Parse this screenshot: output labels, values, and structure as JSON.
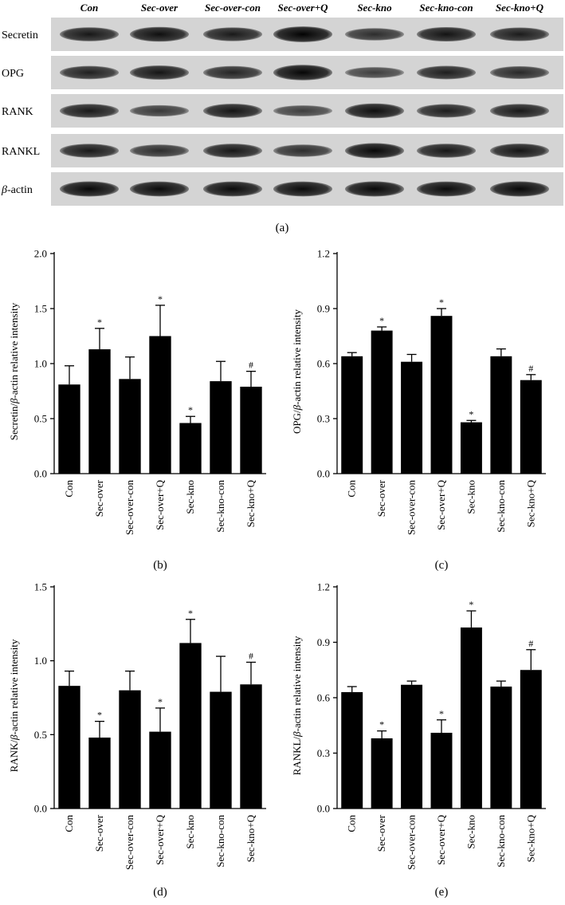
{
  "blot": {
    "lanes": [
      "Con",
      "Sec-over",
      "Sec-over-con",
      "Sec-over+Q",
      "Sec-kno",
      "Sec-kno-con",
      "Sec-kno+Q"
    ],
    "rows": [
      {
        "label": "Secretin",
        "label_italic_prefix": "",
        "intensity": [
          0.8,
          0.88,
          0.78,
          0.98,
          0.62,
          0.84,
          0.76
        ]
      },
      {
        "label": "OPG",
        "label_italic_prefix": "",
        "intensity": [
          0.72,
          0.82,
          0.7,
          0.95,
          0.48,
          0.74,
          0.66
        ]
      },
      {
        "label": "RANK",
        "label_italic_prefix": "",
        "intensity": [
          0.78,
          0.52,
          0.82,
          0.48,
          0.88,
          0.74,
          0.78
        ]
      },
      {
        "label": "RANKL",
        "label_italic_prefix": "",
        "intensity": [
          0.78,
          0.62,
          0.8,
          0.62,
          0.92,
          0.8,
          0.82
        ]
      },
      {
        "label": "-actin",
        "label_italic_prefix": "β",
        "intensity": [
          0.92,
          0.9,
          0.9,
          0.9,
          0.92,
          0.9,
          0.92
        ]
      }
    ],
    "panel_label": "(a)"
  },
  "chart_data": [
    {
      "type": "bar",
      "panel_label": "(b)",
      "ylabel_pre": "Secretin/",
      "ylabel_beta": "β",
      "ylabel_post": "-actin relative intensity",
      "categories": [
        "Con",
        "Sec-over",
        "Sec-over-con",
        "Sec-over+Q",
        "Sec-kno",
        "Sec-kno-con",
        "Sec-kno+Q"
      ],
      "values": [
        0.81,
        1.13,
        0.86,
        1.25,
        0.46,
        0.84,
        0.79
      ],
      "errors": [
        0.17,
        0.19,
        0.2,
        0.28,
        0.06,
        0.18,
        0.14
      ],
      "markers": [
        "",
        "*",
        "",
        "*",
        "*",
        "",
        "#"
      ],
      "ylim": [
        0,
        2.0
      ],
      "yticks": [
        "0.0",
        "0.5",
        "1.0",
        "1.5",
        "2.0"
      ],
      "ytick_values": [
        0,
        0.5,
        1.0,
        1.5,
        2.0
      ],
      "bar_color": "#000000"
    },
    {
      "type": "bar",
      "panel_label": "(c)",
      "ylabel_pre": "OPG/",
      "ylabel_beta": "β",
      "ylabel_post": "-actin relative intensity",
      "categories": [
        "Con",
        "Sec-over",
        "Sec-over-con",
        "Sec-over+Q",
        "Sec-kno",
        "Sec-kno-con",
        "Sec-kno+Q"
      ],
      "values": [
        0.64,
        0.78,
        0.61,
        0.86,
        0.28,
        0.64,
        0.51
      ],
      "errors": [
        0.02,
        0.02,
        0.04,
        0.04,
        0.01,
        0.04,
        0.03
      ],
      "markers": [
        "",
        "*",
        "",
        "*",
        "*",
        "",
        "#"
      ],
      "ylim": [
        0,
        1.2
      ],
      "yticks": [
        "0.0",
        "0.3",
        "0.6",
        "0.9",
        "1.2"
      ],
      "ytick_values": [
        0,
        0.3,
        0.6,
        0.9,
        1.2
      ],
      "bar_color": "#000000"
    },
    {
      "type": "bar",
      "panel_label": "(d)",
      "ylabel_pre": "RANK/",
      "ylabel_beta": "β",
      "ylabel_post": "-actin relative intensity",
      "categories": [
        "Con",
        "Sec-over",
        "Sec-over-con",
        "Sec-over+Q",
        "Sec-kno",
        "Sec-kno-con",
        "Sec-kno+Q"
      ],
      "values": [
        0.83,
        0.48,
        0.8,
        0.52,
        1.12,
        0.79,
        0.84
      ],
      "errors": [
        0.1,
        0.11,
        0.13,
        0.16,
        0.16,
        0.24,
        0.15
      ],
      "markers": [
        "",
        "*",
        "",
        "*",
        "*",
        "",
        "#"
      ],
      "ylim": [
        0,
        1.5
      ],
      "yticks": [
        "0.0",
        "0.5",
        "1.0",
        "1.5"
      ],
      "ytick_values": [
        0,
        0.5,
        1.0,
        1.5
      ],
      "bar_color": "#000000"
    },
    {
      "type": "bar",
      "panel_label": "(e)",
      "ylabel_pre": "RANKL/",
      "ylabel_beta": "β",
      "ylabel_post": "-actin relative intensity",
      "categories": [
        "Con",
        "Sec-over",
        "Sec-over-con",
        "Sec-over+Q",
        "Sec-kno",
        "Sec-kno-con",
        "Sec-kno+Q"
      ],
      "values": [
        0.63,
        0.38,
        0.67,
        0.41,
        0.98,
        0.66,
        0.75
      ],
      "errors": [
        0.03,
        0.04,
        0.02,
        0.07,
        0.09,
        0.03,
        0.11
      ],
      "markers": [
        "",
        "*",
        "",
        "*",
        "*",
        "",
        "#"
      ],
      "ylim": [
        0,
        1.2
      ],
      "yticks": [
        "0.0",
        "0.3",
        "0.6",
        "0.9",
        "1.2"
      ],
      "ytick_values": [
        0,
        0.3,
        0.6,
        0.9,
        1.2
      ],
      "bar_color": "#000000"
    }
  ]
}
